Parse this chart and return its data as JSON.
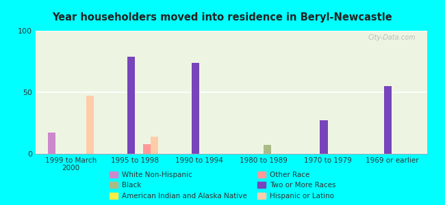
{
  "title": "Year householders moved into residence in Beryl-Newcastle",
  "background_color": "#00FFFF",
  "categories": [
    "1999 to March\n2000",
    "1995 to 1998",
    "1990 to 1994",
    "1980 to 1989",
    "1970 to 1979",
    "1969 or earlier"
  ],
  "series_order": [
    "White Non-Hispanic",
    "American Indian and Alaska Native",
    "Two or More Races",
    "Black",
    "Other Race",
    "Hispanic or Latino"
  ],
  "series": {
    "White Non-Hispanic": {
      "color": "#cc88cc",
      "values": [
        17,
        0,
        0,
        0,
        0,
        0
      ]
    },
    "American Indian and Alaska Native": {
      "color": "#ffee44",
      "values": [
        0,
        0,
        0,
        0,
        0,
        0
      ]
    },
    "Two or More Races": {
      "color": "#7744bb",
      "values": [
        0,
        79,
        74,
        0,
        27,
        55
      ]
    },
    "Black": {
      "color": "#aabb88",
      "values": [
        0,
        0,
        0,
        7,
        0,
        0
      ]
    },
    "Other Race": {
      "color": "#ff9999",
      "values": [
        0,
        8,
        0,
        0,
        0,
        0
      ]
    },
    "Hispanic or Latino": {
      "color": "#ffccaa",
      "values": [
        47,
        14,
        0,
        0,
        0,
        0
      ]
    }
  },
  "ylim": [
    0,
    100
  ],
  "yticks": [
    0,
    50,
    100
  ],
  "bar_width": 0.12,
  "watermark": "City-Data.com",
  "legend_order": [
    [
      "White Non-Hispanic",
      "#cc88cc"
    ],
    [
      "Black",
      "#aabb88"
    ],
    [
      "American Indian and Alaska Native",
      "#ffee44"
    ],
    [
      "Other Race",
      "#ff9999"
    ],
    [
      "Two or More Races",
      "#7744bb"
    ],
    [
      "Hispanic or Latino",
      "#ffccaa"
    ]
  ]
}
